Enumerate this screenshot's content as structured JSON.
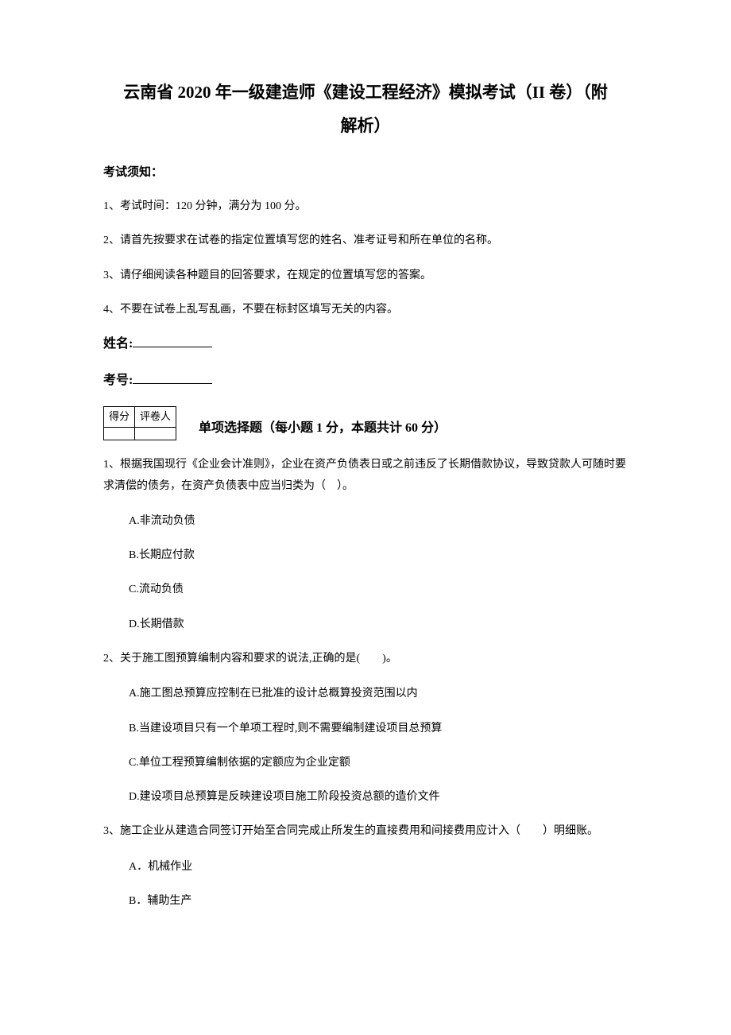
{
  "title_line1": "云南省 2020 年一级建造师《建设工程经济》模拟考试（II 卷）（附",
  "title_line2": "解析）",
  "instructions": {
    "header": "考试须知：",
    "items": [
      "1、考试时间：120 分钟，满分为 100 分。",
      "2、请首先按要求在试卷的指定位置填写您的姓名、准考证号和所在单位的名称。",
      "3、请仔细阅读各种题目的回答要求，在规定的位置填写您的答案。",
      "4、不要在试卷上乱写乱画，不要在标封区填写无关的内容。"
    ]
  },
  "name_label": "姓名:",
  "number_label": "考号:",
  "score_table": {
    "col1": "得分",
    "col2": "评卷人"
  },
  "section_title": "单项选择题（每小题 1 分，本题共计 60 分）",
  "questions": [
    {
      "text": "1、根据我国现行《企业会计准则》，企业在资产负债表日或之前违反了长期借款协议，导致贷款人可随时要求清偿的债务，在资产负债表中应当归类为（　）。",
      "options": [
        "A.非流动负债",
        "B.长期应付款",
        "C.流动负债",
        "D.长期借款"
      ]
    },
    {
      "text": "2、关于施工图预算编制内容和要求的说法,正确的是(　　)。",
      "options": [
        "A.施工图总预算应控制在已批准的设计总概算投资范围以内",
        "B.当建设项目只有一个单项工程时,则不需要编制建设项目总预算",
        "C.单位工程预算编制依据的定额应为企业定额",
        "D.建设项目总预算是反映建设项目施工阶段投资总额的造价文件"
      ]
    },
    {
      "text": "3、施工企业从建造合同签订开始至合同完成止所发生的直接费用和间接费用应计入（　　）明细账。",
      "options": [
        "A．机械作业",
        "B．辅助生产"
      ]
    }
  ]
}
